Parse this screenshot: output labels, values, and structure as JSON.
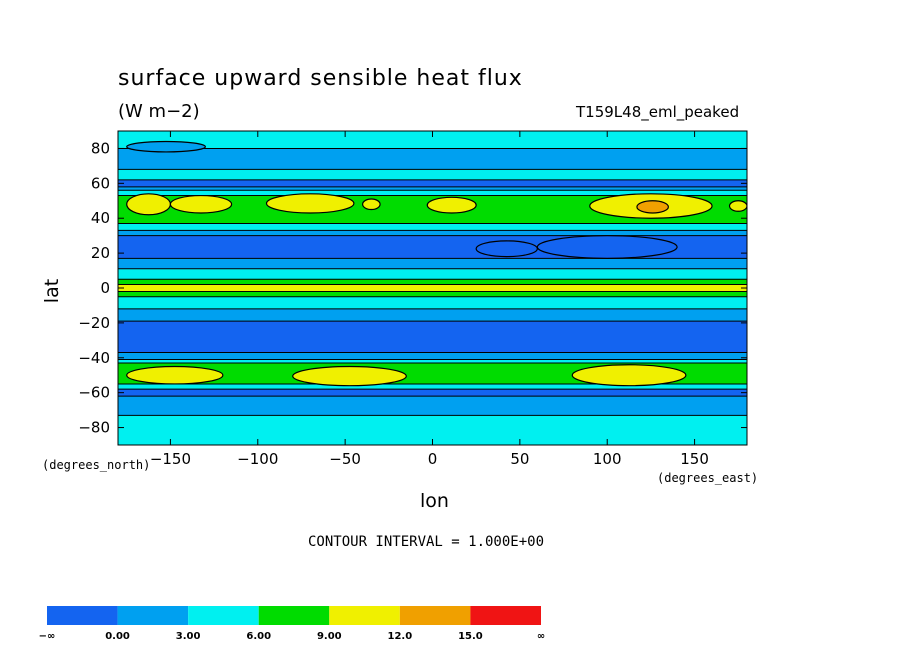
{
  "chart_data": {
    "type": "heatmap",
    "title": "surface upward sensible heat flux",
    "units": "(W m−2)",
    "run_label": "T159L48_eml_peaked",
    "xlabel": "lon",
    "ylabel": "lat",
    "x_units": "(degrees_east)",
    "y_units": "(degrees_north)",
    "xlim": [
      -180,
      180
    ],
    "ylim": [
      -90,
      90
    ],
    "x_ticks": [
      -150,
      -100,
      -50,
      0,
      50,
      100,
      150
    ],
    "y_ticks": [
      80,
      60,
      40,
      20,
      0,
      -20,
      -40,
      -60,
      -80
    ],
    "contour_interval_label": "CONTOUR INTERVAL = 1.000E+00",
    "colorbar": {
      "labels": [
        "−∞",
        "0.00",
        "3.00",
        "6.00",
        "9.00",
        "12.0",
        "15.0",
        "∞"
      ],
      "bins": [
        {
          "range": "<0",
          "color": "#1464f0"
        },
        {
          "range": "0-3",
          "color": "#00a0f0"
        },
        {
          "range": "3-6",
          "color": "#00f0f0"
        },
        {
          "range": "6-9",
          "color": "#00dc00"
        },
        {
          "range": "9-12",
          "color": "#f0f000"
        },
        {
          "range": "12-15",
          "color": "#f0a000"
        },
        {
          "range": ">15",
          "color": "#f01414"
        }
      ]
    },
    "zonal_bands": [
      {
        "lat_top": 90,
        "lat_bottom": 80,
        "bin": 2
      },
      {
        "lat_top": 80,
        "lat_bottom": 68,
        "bin": 1
      },
      {
        "lat_top": 68,
        "lat_bottom": 62,
        "bin": 2
      },
      {
        "lat_top": 62,
        "lat_bottom": 58,
        "bin": 0
      },
      {
        "lat_top": 58,
        "lat_bottom": 56,
        "bin": 1
      },
      {
        "lat_top": 56,
        "lat_bottom": 53,
        "bin": 2
      },
      {
        "lat_top": 53,
        "lat_bottom": 37,
        "bin": 3
      },
      {
        "lat_top": 37,
        "lat_bottom": 33,
        "bin": 2
      },
      {
        "lat_top": 33,
        "lat_bottom": 30,
        "bin": 1
      },
      {
        "lat_top": 30,
        "lat_bottom": 17,
        "bin": 0
      },
      {
        "lat_top": 17,
        "lat_bottom": 11,
        "bin": 1
      },
      {
        "lat_top": 11,
        "lat_bottom": 5,
        "bin": 2
      },
      {
        "lat_top": 5,
        "lat_bottom": 2,
        "bin": 3
      },
      {
        "lat_top": 2,
        "lat_bottom": -2,
        "bin": 4
      },
      {
        "lat_top": -2,
        "lat_bottom": -5,
        "bin": 3
      },
      {
        "lat_top": -5,
        "lat_bottom": -12,
        "bin": 2
      },
      {
        "lat_top": -12,
        "lat_bottom": -19,
        "bin": 1
      },
      {
        "lat_top": -19,
        "lat_bottom": -37,
        "bin": 0
      },
      {
        "lat_top": -37,
        "lat_bottom": -41,
        "bin": 1
      },
      {
        "lat_top": -41,
        "lat_bottom": -43,
        "bin": 2
      },
      {
        "lat_top": -43,
        "lat_bottom": -55,
        "bin": 3
      },
      {
        "lat_top": -55,
        "lat_bottom": -58,
        "bin": 2
      },
      {
        "lat_top": -58,
        "lat_bottom": -62,
        "bin": 0
      },
      {
        "lat_top": -62,
        "lat_bottom": -73,
        "bin": 1
      },
      {
        "lat_top": -73,
        "lat_bottom": -90,
        "bin": 2
      }
    ],
    "maxima": [
      {
        "lon_min": -175,
        "lon_max": -150,
        "lat_min": 42,
        "lat_max": 54,
        "bin": 4
      },
      {
        "lon_min": -150,
        "lon_max": -115,
        "lat_min": 43,
        "lat_max": 53,
        "bin": 4
      },
      {
        "lon_min": -95,
        "lon_max": -45,
        "lat_min": 43,
        "lat_max": 54,
        "bin": 4
      },
      {
        "lon_min": -40,
        "lon_max": -30,
        "lat_min": 45,
        "lat_max": 51,
        "bin": 4
      },
      {
        "lon_min": -3,
        "lon_max": 25,
        "lat_min": 43,
        "lat_max": 52,
        "bin": 4
      },
      {
        "lon_min": 90,
        "lon_max": 160,
        "lat_min": 40,
        "lat_max": 54,
        "bin": 4
      },
      {
        "lon_min": 170,
        "lon_max": 180,
        "lat_min": 44,
        "lat_max": 50,
        "bin": 4
      },
      {
        "lon_min": 117,
        "lon_max": 135,
        "lat_min": 43,
        "lat_max": 50,
        "bin": 5
      },
      {
        "lon_min": -175,
        "lon_max": -120,
        "lat_min": -55,
        "lat_max": -45,
        "bin": 4
      },
      {
        "lon_min": -80,
        "lon_max": -15,
        "lat_min": -56,
        "lat_max": -45,
        "bin": 4
      },
      {
        "lon_min": 80,
        "lon_max": 145,
        "lat_min": -56,
        "lat_max": -44,
        "bin": 4
      },
      {
        "lon_min": 25,
        "lon_max": 60,
        "lat_min": 18,
        "lat_max": 27,
        "bin": 0
      },
      {
        "lon_min": 60,
        "lon_max": 140,
        "lat_min": 17,
        "lat_max": 30,
        "bin": 0
      },
      {
        "lon_min": -175,
        "lon_max": -130,
        "lat_min": 78,
        "lat_max": 84,
        "bin": 1
      }
    ]
  }
}
